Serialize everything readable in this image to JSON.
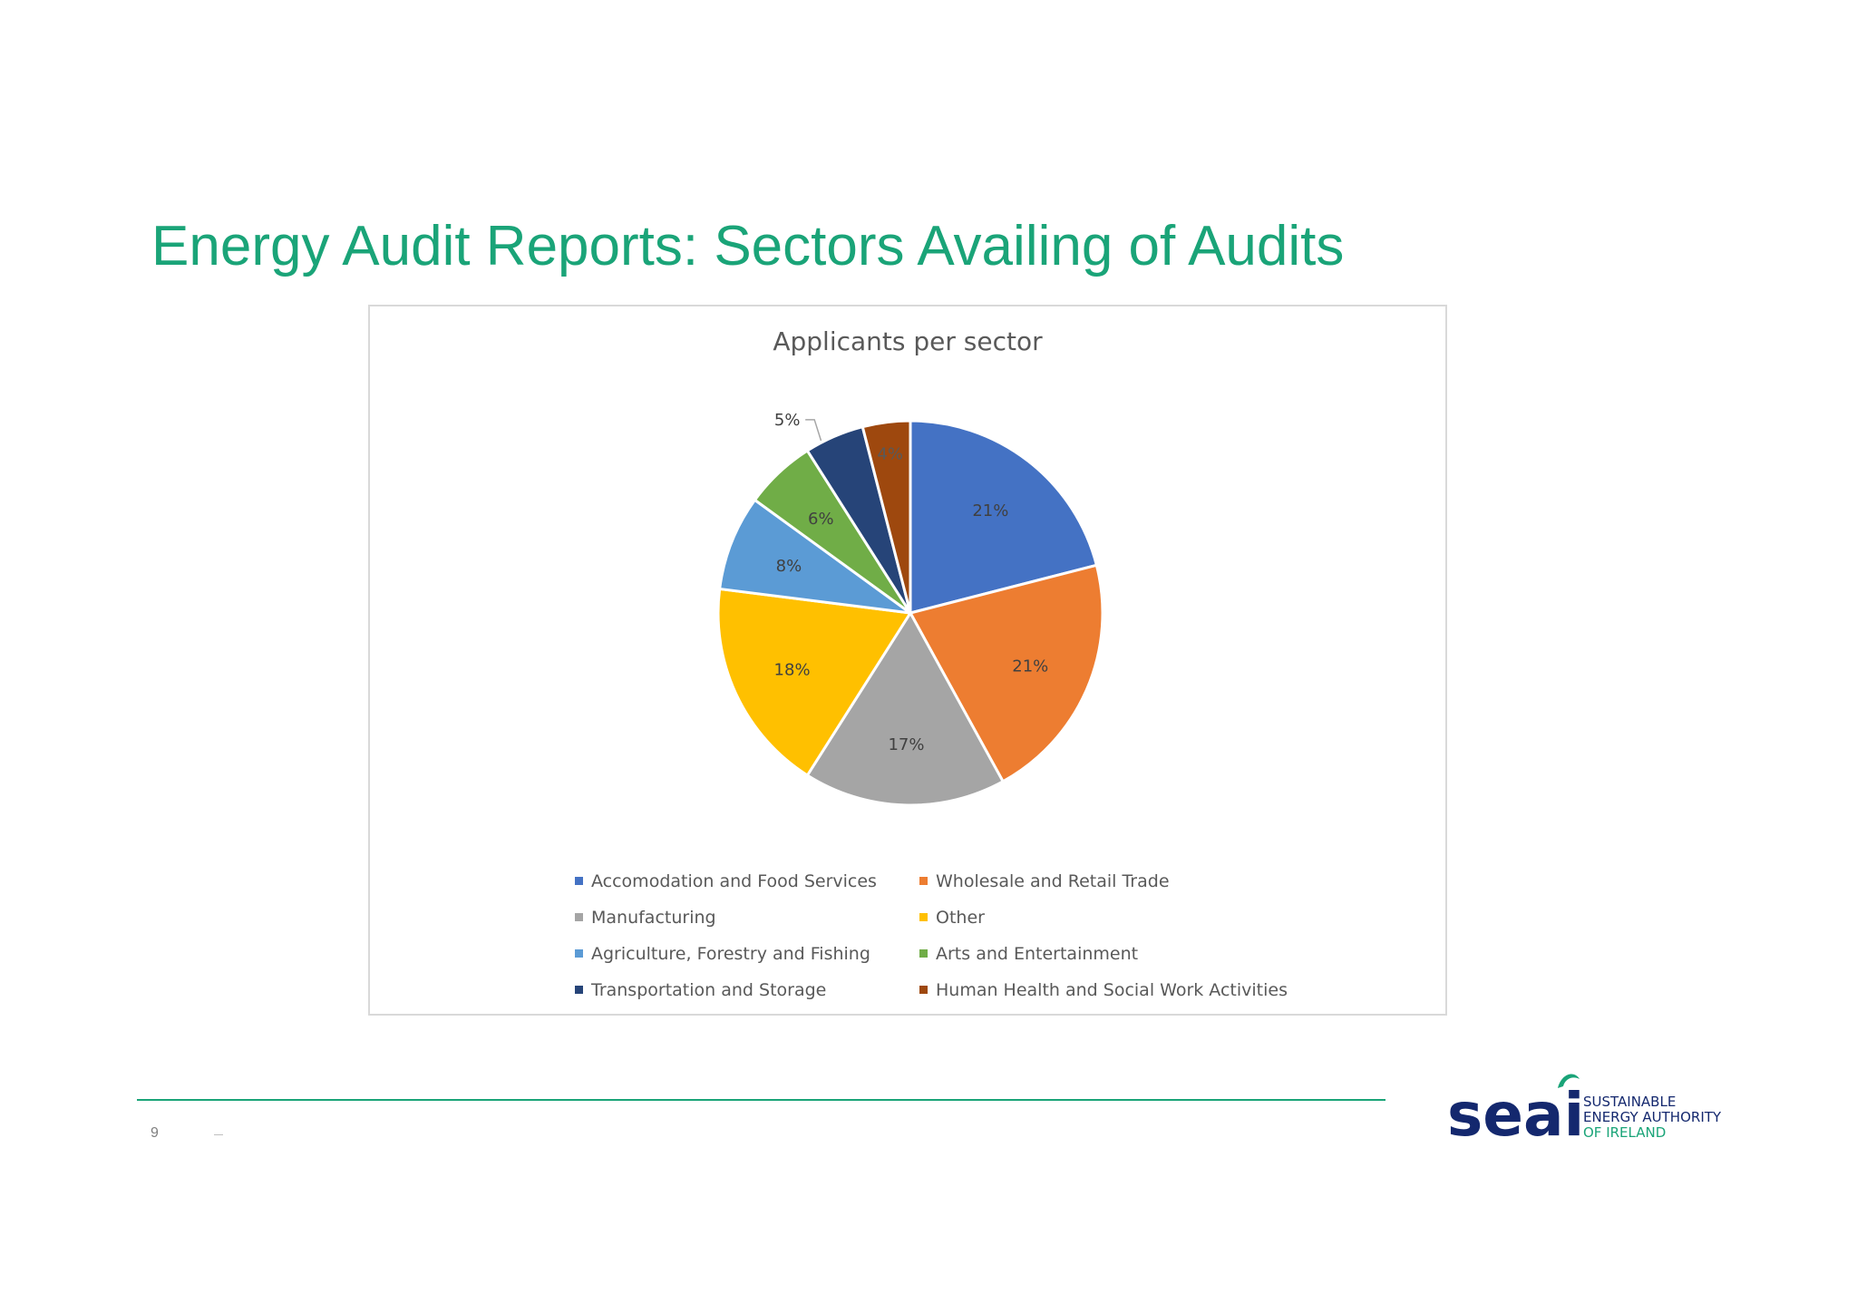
{
  "slide": {
    "title": "Energy Audit Reports: Sectors Availing of Audits",
    "page_number": "9"
  },
  "chart_data": {
    "type": "pie",
    "title": "Applicants per sector",
    "categories": [
      "Accomodation and Food Services",
      "Wholesale and Retail Trade",
      "Manufacturing",
      "Other",
      "Agriculture, Forestry and Fishing",
      "Arts and Entertainment",
      "Transportation and Storage",
      "Human Health and Social Work Activities"
    ],
    "values": [
      21,
      21,
      17,
      18,
      8,
      6,
      5,
      4
    ],
    "labels": [
      "21%",
      "21%",
      "17%",
      "18%",
      "8%",
      "6%",
      "5%",
      "4%"
    ],
    "colors": [
      "#4472c4",
      "#ed7d31",
      "#a5a5a5",
      "#ffc000",
      "#5b9bd5",
      "#70ad47",
      "#264478",
      "#9e480e"
    ],
    "legend_position": "bottom"
  },
  "logo": {
    "wordmark": "seai",
    "line1": "SUSTAINABLE",
    "line2": "ENERGY AUTHORITY",
    "line3": "OF IRELAND",
    "wordmark_color": "#14286e",
    "accent_color": "#1aa478"
  },
  "theme": {
    "accent": "#1aa478"
  }
}
